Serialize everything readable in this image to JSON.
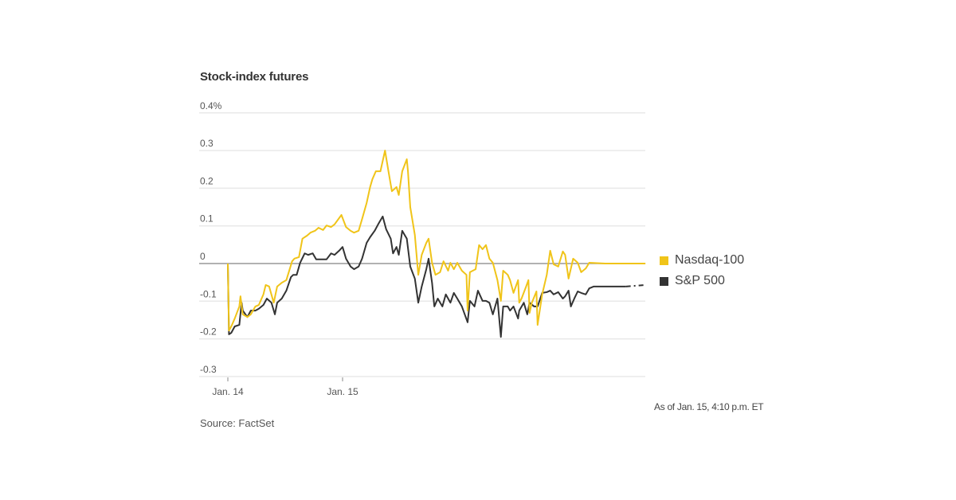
{
  "chart_data": {
    "type": "line",
    "title": "Stock-index futures",
    "note": "As of Jan. 15, 4:10 p.m. ET",
    "source": "Source: FactSet",
    "ylim": [
      -0.3,
      0.4
    ],
    "yticks": [
      {
        "v": 0.4,
        "label": "0.4%"
      },
      {
        "v": 0.3,
        "label": "0.3"
      },
      {
        "v": 0.2,
        "label": "0.2"
      },
      {
        "v": 0.1,
        "label": "0.1"
      },
      {
        "v": 0,
        "label": "0"
      },
      {
        "v": -0.1,
        "label": "-0.1"
      },
      {
        "v": -0.2,
        "label": "-0.2"
      },
      {
        "v": -0.3,
        "label": "-0.3"
      }
    ],
    "xticks": [
      {
        "v": 14,
        "label": "Jan. 14"
      },
      {
        "v": 15,
        "label": "Jan. 15"
      }
    ],
    "grid": true,
    "legend_placement": "right",
    "series": [
      {
        "name": "Nasdaq-100",
        "color": "#f0c419",
        "points": [
          [
            14.0,
            0
          ],
          [
            14.01,
            -0.178
          ],
          [
            14.03,
            -0.167
          ],
          [
            14.06,
            -0.146
          ],
          [
            14.1,
            -0.114
          ],
          [
            14.11,
            -0.087
          ],
          [
            14.13,
            -0.135
          ],
          [
            14.17,
            -0.142
          ],
          [
            14.2,
            -0.135
          ],
          [
            14.24,
            -0.114
          ],
          [
            14.27,
            -0.11
          ],
          [
            14.31,
            -0.082
          ],
          [
            14.33,
            -0.057
          ],
          [
            14.36,
            -0.061
          ],
          [
            14.4,
            -0.104
          ],
          [
            14.43,
            -0.061
          ],
          [
            14.47,
            -0.051
          ],
          [
            14.51,
            -0.044
          ],
          [
            14.56,
            0.006
          ],
          [
            14.58,
            0.013
          ],
          [
            14.62,
            0.017
          ],
          [
            14.65,
            0.066
          ],
          [
            14.69,
            0.074
          ],
          [
            14.72,
            0.082
          ],
          [
            14.76,
            0.087
          ],
          [
            14.79,
            0.095
          ],
          [
            14.83,
            0.089
          ],
          [
            14.86,
            0.101
          ],
          [
            14.9,
            0.097
          ],
          [
            14.93,
            0.104
          ],
          [
            14.99,
            0.129
          ],
          [
            15.03,
            0.097
          ],
          [
            15.07,
            0.087
          ],
          [
            15.1,
            0.082
          ],
          [
            15.14,
            0.087
          ],
          [
            15.17,
            0.118
          ],
          [
            15.21,
            0.161
          ],
          [
            15.24,
            0.203
          ],
          [
            15.26,
            0.224
          ],
          [
            15.29,
            0.245
          ],
          [
            15.33,
            0.245
          ],
          [
            15.37,
            0.3
          ],
          [
            15.4,
            0.245
          ],
          [
            15.43,
            0.192
          ],
          [
            15.47,
            0.203
          ],
          [
            15.49,
            0.182
          ],
          [
            15.52,
            0.245
          ],
          [
            15.56,
            0.277
          ],
          [
            15.57,
            0.245
          ],
          [
            15.59,
            0.15
          ],
          [
            15.63,
            0.076
          ],
          [
            15.66,
            -0.03
          ],
          [
            15.69,
            0.023
          ],
          [
            15.73,
            0.055
          ],
          [
            15.75,
            0.066
          ],
          [
            15.78,
            0.002
          ],
          [
            15.81,
            -0.03
          ],
          [
            15.85,
            -0.023
          ],
          [
            15.88,
            0.006
          ],
          [
            15.92,
            -0.019
          ],
          [
            15.94,
            0.002
          ],
          [
            15.97,
            -0.015
          ],
          [
            16.0,
            0.002
          ],
          [
            16.04,
            -0.019
          ],
          [
            16.08,
            -0.03
          ],
          [
            16.09,
            -0.125
          ],
          [
            16.11,
            -0.023
          ],
          [
            16.16,
            -0.015
          ],
          [
            16.19,
            0.049
          ],
          [
            16.22,
            0.038
          ],
          [
            16.25,
            0.049
          ],
          [
            16.28,
            0.013
          ],
          [
            16.31,
            0.002
          ],
          [
            16.35,
            -0.044
          ],
          [
            16.38,
            -0.099
          ],
          [
            16.4,
            -0.019
          ],
          [
            16.44,
            -0.03
          ],
          [
            16.46,
            -0.044
          ],
          [
            16.49,
            -0.078
          ],
          [
            16.53,
            -0.044
          ],
          [
            16.54,
            -0.104
          ],
          [
            16.56,
            -0.093
          ],
          [
            16.6,
            -0.061
          ],
          [
            16.62,
            -0.044
          ],
          [
            16.63,
            -0.131
          ],
          [
            16.65,
            -0.104
          ],
          [
            16.69,
            -0.074
          ],
          [
            16.7,
            -0.163
          ],
          [
            16.74,
            -0.082
          ],
          [
            16.78,
            -0.03
          ],
          [
            16.81,
            0.034
          ],
          [
            16.84,
            -0.002
          ],
          [
            16.88,
            -0.008
          ],
          [
            16.92,
            0.032
          ],
          [
            16.94,
            0.023
          ],
          [
            16.97,
            -0.04
          ],
          [
            17.01,
            0.013
          ],
          [
            17.05,
            0.002
          ],
          [
            17.08,
            -0.023
          ],
          [
            17.12,
            -0.013
          ],
          [
            17.15,
            0.002
          ],
          [
            17.29,
            0
          ],
          [
            17.64,
            0
          ]
        ]
      },
      {
        "name": "S&P 500",
        "color": "#333333",
        "points": [
          [
            14.0,
            0
          ],
          [
            14.01,
            -0.188
          ],
          [
            14.03,
            -0.184
          ],
          [
            14.06,
            -0.167
          ],
          [
            14.1,
            -0.163
          ],
          [
            14.12,
            -0.104
          ],
          [
            14.13,
            -0.125
          ],
          [
            14.17,
            -0.142
          ],
          [
            14.2,
            -0.125
          ],
          [
            14.24,
            -0.125
          ],
          [
            14.27,
            -0.12
          ],
          [
            14.31,
            -0.11
          ],
          [
            14.34,
            -0.093
          ],
          [
            14.38,
            -0.104
          ],
          [
            14.41,
            -0.135
          ],
          [
            14.43,
            -0.104
          ],
          [
            14.47,
            -0.093
          ],
          [
            14.51,
            -0.072
          ],
          [
            14.55,
            -0.036
          ],
          [
            14.57,
            -0.03
          ],
          [
            14.6,
            -0.03
          ],
          [
            14.63,
            0.002
          ],
          [
            14.67,
            0.027
          ],
          [
            14.7,
            0.023
          ],
          [
            14.74,
            0.027
          ],
          [
            14.77,
            0.011
          ],
          [
            14.81,
            0.011
          ],
          [
            14.86,
            0.011
          ],
          [
            14.9,
            0.027
          ],
          [
            14.93,
            0.023
          ],
          [
            14.97,
            0.034
          ],
          [
            15.0,
            0.044
          ],
          [
            15.03,
            0.013
          ],
          [
            15.07,
            -0.008
          ],
          [
            15.1,
            -0.015
          ],
          [
            15.14,
            -0.008
          ],
          [
            15.17,
            0.013
          ],
          [
            15.21,
            0.055
          ],
          [
            15.24,
            0.07
          ],
          [
            15.28,
            0.087
          ],
          [
            15.31,
            0.104
          ],
          [
            15.35,
            0.125
          ],
          [
            15.38,
            0.091
          ],
          [
            15.42,
            0.066
          ],
          [
            15.44,
            0.027
          ],
          [
            15.47,
            0.044
          ],
          [
            15.49,
            0.023
          ],
          [
            15.52,
            0.087
          ],
          [
            15.56,
            0.066
          ],
          [
            15.59,
            -0.008
          ],
          [
            15.63,
            -0.04
          ],
          [
            15.66,
            -0.104
          ],
          [
            15.69,
            -0.061
          ],
          [
            15.73,
            -0.015
          ],
          [
            15.75,
            0.013
          ],
          [
            15.78,
            -0.051
          ],
          [
            15.8,
            -0.114
          ],
          [
            15.83,
            -0.093
          ],
          [
            15.87,
            -0.114
          ],
          [
            15.9,
            -0.082
          ],
          [
            15.94,
            -0.104
          ],
          [
            15.97,
            -0.078
          ],
          [
            16.0,
            -0.093
          ],
          [
            16.04,
            -0.114
          ],
          [
            16.09,
            -0.156
          ],
          [
            16.11,
            -0.099
          ],
          [
            16.15,
            -0.114
          ],
          [
            16.18,
            -0.072
          ],
          [
            16.22,
            -0.099
          ],
          [
            16.25,
            -0.099
          ],
          [
            16.28,
            -0.104
          ],
          [
            16.31,
            -0.135
          ],
          [
            16.35,
            -0.093
          ],
          [
            16.38,
            -0.195
          ],
          [
            16.4,
            -0.114
          ],
          [
            16.44,
            -0.114
          ],
          [
            16.46,
            -0.125
          ],
          [
            16.49,
            -0.114
          ],
          [
            16.53,
            -0.146
          ],
          [
            16.54,
            -0.125
          ],
          [
            16.58,
            -0.104
          ],
          [
            16.61,
            -0.135
          ],
          [
            16.63,
            -0.104
          ],
          [
            16.67,
            -0.114
          ],
          [
            16.7,
            -0.114
          ],
          [
            16.74,
            -0.078
          ],
          [
            16.78,
            -0.076
          ],
          [
            16.81,
            -0.072
          ],
          [
            16.84,
            -0.082
          ],
          [
            16.88,
            -0.076
          ],
          [
            16.92,
            -0.093
          ],
          [
            16.94,
            -0.087
          ],
          [
            16.97,
            -0.072
          ],
          [
            16.99,
            -0.114
          ],
          [
            17.02,
            -0.093
          ],
          [
            17.05,
            -0.074
          ],
          [
            17.08,
            -0.078
          ],
          [
            17.12,
            -0.082
          ],
          [
            17.15,
            -0.066
          ],
          [
            17.19,
            -0.061
          ],
          [
            17.47,
            -0.061
          ],
          [
            17.64,
            -0.057
          ]
        ]
      }
    ]
  }
}
